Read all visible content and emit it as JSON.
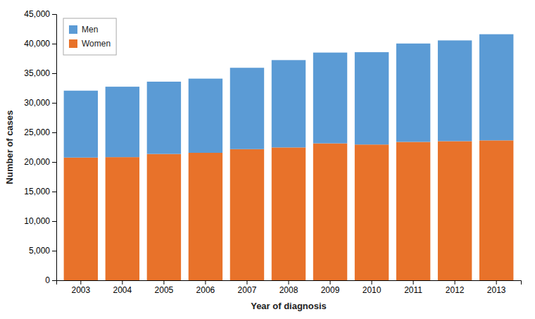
{
  "chart_data": {
    "type": "bar",
    "stacked": true,
    "xlabel": "Year of diagnosis",
    "ylabel": "Number of cases",
    "categories": [
      "2003",
      "2004",
      "2005",
      "2006",
      "2007",
      "2008",
      "2009",
      "2010",
      "2011",
      "2012",
      "2013"
    ],
    "series": [
      {
        "name": "Men",
        "color": "#5B9BD5",
        "values": [
          11314,
          11908,
          12226,
          12541,
          13755,
          14767,
          15349,
          15614,
          16633,
          17031,
          17944
        ]
      },
      {
        "name": "Women",
        "color": "#E8722A",
        "values": [
          20742,
          20816,
          21352,
          21548,
          22167,
          22455,
          23145,
          22946,
          23392,
          23518,
          23651
        ]
      }
    ],
    "ylim": [
      0,
      45000
    ],
    "yticks": [
      0,
      {
        "value": 5000,
        "label": "5,000"
      },
      {
        "value": 10000,
        "label": "10,000"
      },
      {
        "value": 15000,
        "label": "15,000"
      },
      {
        "value": 20000,
        "label": "20,000"
      },
      {
        "value": 25000,
        "label": "25,000"
      },
      {
        "value": 30000,
        "label": "30,000"
      },
      {
        "value": 35000,
        "label": "35,000"
      },
      {
        "value": 40000,
        "label": "40,000"
      },
      {
        "value": 45000,
        "label": "45,000"
      }
    ],
    "grid": false,
    "legend": "upper left"
  }
}
